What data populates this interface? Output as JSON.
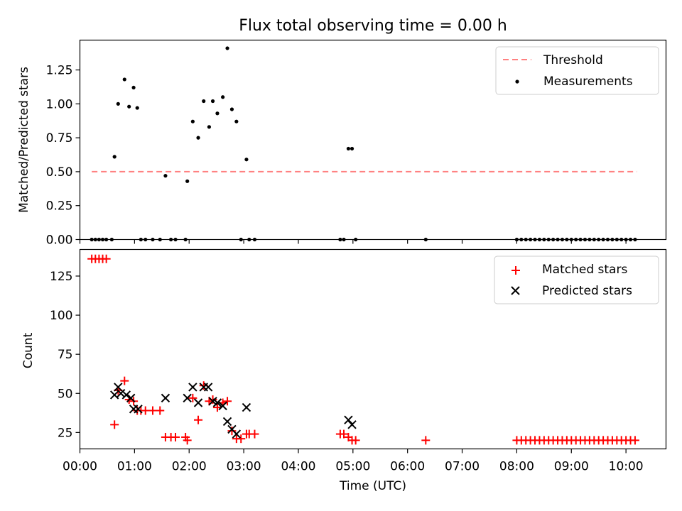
{
  "chart_data": [
    {
      "type": "scatter",
      "title": "Flux total observing time = 0.00 h",
      "xlabel": "",
      "ylabel": "Matched/Predicted stars",
      "xlim": [
        "00:00",
        "10:44"
      ],
      "ylim": [
        0,
        1.47
      ],
      "yticks": [
        {
          "v": 0,
          "label": "0.00"
        },
        {
          "v": 0.25,
          "label": "0.25"
        },
        {
          "v": 0.5,
          "label": "0.50"
        },
        {
          "v": 0.75,
          "label": "0.75"
        },
        {
          "v": 1.0,
          "label": "1.00"
        },
        {
          "v": 1.25,
          "label": "1.25"
        }
      ],
      "legend_position": "top-right",
      "series": [
        {
          "name": "Threshold",
          "kind": "dashed-line",
          "color": "#ff8080",
          "points": [
            [
              "00:13",
              0.5
            ],
            [
              "10:12",
              0.5
            ]
          ]
        },
        {
          "name": "Measurements",
          "kind": "dot",
          "color": "#000000",
          "points": [
            [
              "00:13",
              0.0
            ],
            [
              "00:17",
              0.0
            ],
            [
              "00:21",
              0.0
            ],
            [
              "00:25",
              0.0
            ],
            [
              "00:29",
              0.0
            ],
            [
              "00:35",
              0.0
            ],
            [
              "00:38",
              0.61
            ],
            [
              "00:42",
              1.0
            ],
            [
              "00:49",
              1.18
            ],
            [
              "00:54",
              0.98
            ],
            [
              "00:59",
              1.12
            ],
            [
              "01:03",
              0.97
            ],
            [
              "01:07",
              0.0
            ],
            [
              "01:12",
              0.0
            ],
            [
              "01:20",
              0.0
            ],
            [
              "01:28",
              0.0
            ],
            [
              "01:34",
              0.47
            ],
            [
              "01:40",
              0.0
            ],
            [
              "01:45",
              0.0
            ],
            [
              "01:56",
              0.0
            ],
            [
              "01:58",
              0.43
            ],
            [
              "02:04",
              0.87
            ],
            [
              "02:10",
              0.75
            ],
            [
              "02:16",
              1.02
            ],
            [
              "02:22",
              0.83
            ],
            [
              "02:26",
              1.02
            ],
            [
              "02:31",
              0.93
            ],
            [
              "02:37",
              1.05
            ],
            [
              "02:42",
              1.41
            ],
            [
              "02:47",
              0.96
            ],
            [
              "02:52",
              0.87
            ],
            [
              "02:57",
              0.0
            ],
            [
              "03:03",
              0.59
            ],
            [
              "03:06",
              0.0
            ],
            [
              "03:12",
              0.0
            ],
            [
              "04:46",
              0.0
            ],
            [
              "04:50",
              0.0
            ],
            [
              "04:55",
              0.67
            ],
            [
              "04:59",
              0.67
            ],
            [
              "05:03",
              0.0
            ],
            [
              "06:20",
              0.0
            ],
            [
              "08:00",
              0.0
            ],
            [
              "08:05",
              0.0
            ],
            [
              "08:10",
              0.0
            ],
            [
              "08:15",
              0.0
            ],
            [
              "08:20",
              0.0
            ],
            [
              "08:25",
              0.0
            ],
            [
              "08:30",
              0.0
            ],
            [
              "08:35",
              0.0
            ],
            [
              "08:40",
              0.0
            ],
            [
              "08:45",
              0.0
            ],
            [
              "08:50",
              0.0
            ],
            [
              "08:55",
              0.0
            ],
            [
              "09:00",
              0.0
            ],
            [
              "09:05",
              0.0
            ],
            [
              "09:10",
              0.0
            ],
            [
              "09:15",
              0.0
            ],
            [
              "09:20",
              0.0
            ],
            [
              "09:25",
              0.0
            ],
            [
              "09:30",
              0.0
            ],
            [
              "09:35",
              0.0
            ],
            [
              "09:40",
              0.0
            ],
            [
              "09:45",
              0.0
            ],
            [
              "09:50",
              0.0
            ],
            [
              "09:55",
              0.0
            ],
            [
              "10:00",
              0.0
            ],
            [
              "10:05",
              0.0
            ],
            [
              "10:10",
              0.0
            ]
          ]
        }
      ]
    },
    {
      "type": "scatter",
      "title": "",
      "xlabel": "Time (UTC)",
      "ylabel": "Count",
      "xlim": [
        "00:00",
        "10:44"
      ],
      "ylim": [
        14.5,
        142
      ],
      "yticks": [
        {
          "v": 25,
          "label": "25"
        },
        {
          "v": 50,
          "label": "50"
        },
        {
          "v": 75,
          "label": "75"
        },
        {
          "v": 100,
          "label": "100"
        },
        {
          "v": 125,
          "label": "125"
        }
      ],
      "xticks": [
        "00:00",
        "01:00",
        "02:00",
        "03:00",
        "04:00",
        "05:00",
        "06:00",
        "07:00",
        "08:00",
        "09:00",
        "10:00"
      ],
      "legend_position": "top-right",
      "series": [
        {
          "name": "Matched stars",
          "kind": "plus",
          "color": "#ff0000",
          "points": [
            [
              "00:13",
              136
            ],
            [
              "00:17",
              136
            ],
            [
              "00:21",
              136
            ],
            [
              "00:25",
              136
            ],
            [
              "00:29",
              136
            ],
            [
              "00:38",
              30
            ],
            [
              "00:42",
              52
            ],
            [
              "00:49",
              58
            ],
            [
              "00:54",
              46
            ],
            [
              "00:59",
              45
            ],
            [
              "01:03",
              39
            ],
            [
              "01:07",
              39
            ],
            [
              "01:12",
              39
            ],
            [
              "01:20",
              39
            ],
            [
              "01:28",
              39
            ],
            [
              "01:34",
              22
            ],
            [
              "01:40",
              22
            ],
            [
              "01:45",
              22
            ],
            [
              "01:56",
              22
            ],
            [
              "01:58",
              20
            ],
            [
              "02:04",
              47
            ],
            [
              "02:10",
              33
            ],
            [
              "02:16",
              55
            ],
            [
              "02:22",
              45
            ],
            [
              "02:26",
              46
            ],
            [
              "02:31",
              41
            ],
            [
              "02:37",
              44
            ],
            [
              "02:42",
              45
            ],
            [
              "02:47",
              26
            ],
            [
              "02:52",
              21
            ],
            [
              "02:57",
              21
            ],
            [
              "03:03",
              24
            ],
            [
              "03:06",
              24
            ],
            [
              "03:12",
              24
            ],
            [
              "04:46",
              24
            ],
            [
              "04:50",
              24
            ],
            [
              "04:55",
              22
            ],
            [
              "04:59",
              20
            ],
            [
              "05:03",
              20
            ],
            [
              "06:20",
              20
            ],
            [
              "08:00",
              20
            ],
            [
              "08:05",
              20
            ],
            [
              "08:10",
              20
            ],
            [
              "08:15",
              20
            ],
            [
              "08:20",
              20
            ],
            [
              "08:25",
              20
            ],
            [
              "08:30",
              20
            ],
            [
              "08:35",
              20
            ],
            [
              "08:40",
              20
            ],
            [
              "08:45",
              20
            ],
            [
              "08:50",
              20
            ],
            [
              "08:55",
              20
            ],
            [
              "09:00",
              20
            ],
            [
              "09:05",
              20
            ],
            [
              "09:10",
              20
            ],
            [
              "09:15",
              20
            ],
            [
              "09:20",
              20
            ],
            [
              "09:25",
              20
            ],
            [
              "09:30",
              20
            ],
            [
              "09:35",
              20
            ],
            [
              "09:40",
              20
            ],
            [
              "09:45",
              20
            ],
            [
              "09:50",
              20
            ],
            [
              "09:55",
              20
            ],
            [
              "10:00",
              20
            ],
            [
              "10:05",
              20
            ],
            [
              "10:10",
              20
            ]
          ]
        },
        {
          "name": "Predicted stars",
          "kind": "x",
          "color": "#000000",
          "points": [
            [
              "00:38",
              49
            ],
            [
              "00:42",
              54
            ],
            [
              "00:45",
              50
            ],
            [
              "00:51",
              49
            ],
            [
              "00:56",
              47
            ],
            [
              "00:59",
              40
            ],
            [
              "01:04",
              40
            ],
            [
              "01:34",
              47
            ],
            [
              "01:58",
              47
            ],
            [
              "02:04",
              54
            ],
            [
              "02:10",
              44
            ],
            [
              "02:16",
              54
            ],
            [
              "02:21",
              54
            ],
            [
              "02:26",
              45
            ],
            [
              "02:31",
              44
            ],
            [
              "02:37",
              42
            ],
            [
              "02:42",
              32
            ],
            [
              "02:47",
              27
            ],
            [
              "02:52",
              24
            ],
            [
              "03:03",
              41
            ],
            [
              "04:55",
              33
            ],
            [
              "04:59",
              30
            ]
          ]
        }
      ]
    }
  ]
}
